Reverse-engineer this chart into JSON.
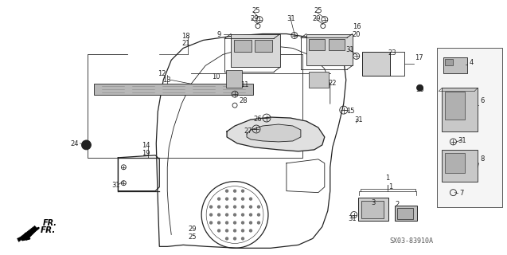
{
  "bg_color": "#ffffff",
  "diagram_color": "#222222",
  "line_color": "#222222",
  "fig_width": 6.37,
  "fig_height": 3.2,
  "dpi": 100,
  "watermark": "SX03-83910A",
  "direction_label": "FR."
}
